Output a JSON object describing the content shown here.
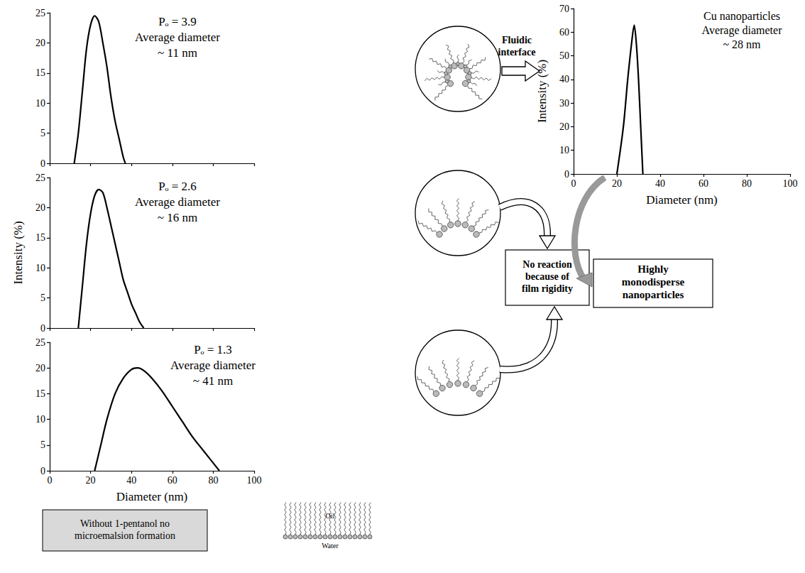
{
  "chart_data": [
    {
      "type": "line",
      "annotations": [
        "Pₒ = 3.9",
        "Average diameter",
        "~ 11 nm"
      ],
      "x": [
        12,
        14,
        16,
        18,
        20,
        22,
        24,
        26,
        28,
        30,
        32,
        34,
        36,
        37
      ],
      "values": [
        0,
        5,
        12,
        19,
        23,
        24.5,
        23.5,
        20,
        16,
        11,
        7,
        4,
        1,
        0
      ],
      "color": "#000000",
      "xlim": [
        0,
        100
      ],
      "xticks": [
        0,
        20,
        40,
        60,
        80,
        100
      ],
      "ylim": [
        0,
        25
      ],
      "yticks": [
        0,
        5,
        10,
        15,
        20,
        25
      ],
      "tick_labels": "y",
      "grid": false
    },
    {
      "type": "line",
      "annotations": [
        "Pₒ = 2.6",
        "Average diameter",
        "~ 16 nm"
      ],
      "ylabel": "Intensity (%)",
      "x": [
        14,
        16,
        18,
        20,
        22,
        24,
        26,
        28,
        30,
        32,
        34,
        36,
        38,
        40,
        42,
        44,
        46
      ],
      "values": [
        0,
        7,
        14,
        19,
        22,
        23,
        22.5,
        20,
        17,
        14,
        11,
        8,
        6,
        4,
        2.5,
        1,
        0
      ],
      "color": "#000000",
      "xlim": [
        0,
        100
      ],
      "xticks": [
        0,
        20,
        40,
        60,
        80,
        100
      ],
      "ylim": [
        0,
        25
      ],
      "yticks": [
        0,
        5,
        10,
        15,
        20,
        25
      ],
      "tick_labels": "y",
      "grid": false
    },
    {
      "type": "line",
      "annotations": [
        "Pₒ = 1.3",
        "Average diameter",
        "~ 41 nm"
      ],
      "xlabel": "Diameter (nm)",
      "x": [
        22,
        25,
        28,
        32,
        36,
        40,
        43,
        46,
        50,
        55,
        60,
        65,
        70,
        75,
        80,
        83
      ],
      "values": [
        0,
        5,
        10,
        15,
        18,
        19.7,
        20,
        19.5,
        18,
        15.5,
        12.5,
        9.5,
        6.5,
        4,
        1.5,
        0
      ],
      "color": "#000000",
      "xlim": [
        0,
        100
      ],
      "xticks": [
        0,
        20,
        40,
        60,
        80,
        100
      ],
      "ylim": [
        0,
        25
      ],
      "yticks": [
        0,
        5,
        10,
        15,
        20,
        25
      ],
      "grid": false
    },
    {
      "type": "line",
      "annotations": [
        "Cu nanoparticles",
        "Average diameter",
        "~ 28 nm"
      ],
      "xlabel": "Diameter (nm)",
      "ylabel": "Intensity (%)",
      "x": [
        20,
        23,
        25,
        27,
        28,
        29,
        30,
        31,
        32
      ],
      "values": [
        0,
        20,
        40,
        57,
        63,
        55,
        40,
        20,
        0
      ],
      "color": "#000000",
      "xlim": [
        0,
        100
      ],
      "xticks": [
        0,
        20,
        40,
        60,
        80,
        100
      ],
      "ylim": [
        0,
        70
      ],
      "yticks": [
        0,
        10,
        20,
        30,
        40,
        50,
        60,
        70
      ],
      "grid": false
    }
  ],
  "diagram": {
    "arrow_label": "Fluidic interface",
    "rigidity_box": "No reaction because of film rigidity",
    "result_box": "Highly monodisperse nanoparticles",
    "note_box": "Without 1-pentanol no microemalsion formation",
    "inset_labels": [
      "Oil",
      "Water"
    ]
  }
}
